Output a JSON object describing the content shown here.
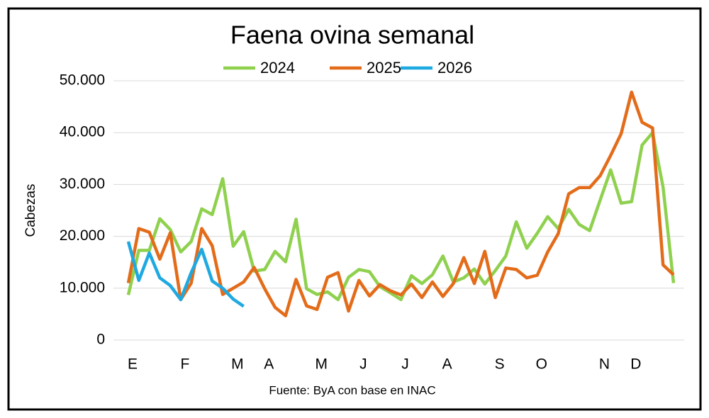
{
  "chart_data": {
    "type": "line",
    "title": "Faena ovina semanal",
    "y_label": "Cabezas",
    "source": "Fuente: ByA con base en INAC",
    "categories": [
      "E",
      null,
      null,
      null,
      null,
      "F",
      null,
      null,
      null,
      null,
      "M",
      null,
      null,
      "A",
      null,
      null,
      null,
      null,
      "M",
      null,
      null,
      null,
      "J",
      null,
      null,
      null,
      "J",
      null,
      null,
      null,
      "A",
      null,
      null,
      null,
      null,
      "S",
      null,
      null,
      null,
      "O",
      null,
      null,
      null,
      null,
      null,
      "N",
      null,
      null,
      "D",
      null,
      null,
      null,
      null
    ],
    "series": [
      {
        "name": "2024",
        "color": "#8fd14f",
        "values": [
          8700,
          17300,
          17300,
          23400,
          21300,
          17000,
          19000,
          25300,
          24200,
          31100,
          18100,
          20900,
          13300,
          13600,
          17100,
          15100,
          23300,
          9900,
          8800,
          9300,
          7800,
          12100,
          13600,
          13200,
          10300,
          9100,
          7800,
          12400,
          10900,
          12600,
          16200,
          11200,
          12000,
          13700,
          10800,
          13400,
          16200,
          22800,
          17700,
          20600,
          23800,
          21500,
          25200,
          22300,
          21100,
          27000,
          32800,
          26400,
          26700,
          37600,
          40000,
          29500,
          11000
        ]
      },
      {
        "name": "2025",
        "color": "#e36c1a",
        "values": [
          11000,
          21500,
          20800,
          15600,
          20700,
          7800,
          11000,
          21500,
          18200,
          8800,
          10000,
          11200,
          14000,
          9900,
          6300,
          4700,
          11700,
          6600,
          5900,
          12100,
          13000,
          5600,
          11500,
          8500,
          10700,
          9500,
          8700,
          10800,
          8200,
          11200,
          8400,
          10900,
          15900,
          10900,
          17100,
          8200,
          13900,
          13600,
          12000,
          12500,
          17000,
          20500,
          28200,
          29400,
          29400,
          31700,
          35600,
          39800,
          47800,
          42000,
          40900,
          14500,
          12600
        ]
      },
      {
        "name": "2026",
        "color": "#1fa9e1",
        "values": [
          19000,
          11500,
          16800,
          12000,
          10500,
          7800,
          13000,
          17500,
          11400,
          10000,
          7900,
          6500,
          null,
          null,
          null,
          null,
          null,
          null,
          null,
          null,
          null,
          null,
          null,
          null,
          null,
          null,
          null,
          null,
          null,
          null,
          null,
          null,
          null,
          null,
          null,
          null,
          null,
          null,
          null,
          null,
          null,
          null,
          null,
          null,
          null,
          null,
          null,
          null,
          null,
          null,
          null,
          null,
          null
        ]
      }
    ],
    "ylim": [
      0,
      50000
    ],
    "yticks": [
      0,
      {
        "value": 10000,
        "label": "10.000"
      },
      {
        "value": 20000,
        "label": "20.000"
      },
      {
        "value": 30000,
        "label": "30.000"
      },
      {
        "value": 40000,
        "label": "40.000"
      },
      {
        "value": 50000,
        "label": "50.000"
      }
    ],
    "grid": true,
    "legend": "top"
  }
}
